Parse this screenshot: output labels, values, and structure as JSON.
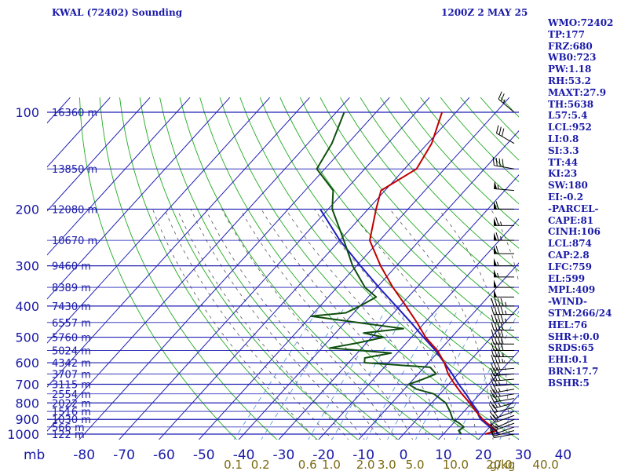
{
  "chart_data": {
    "type": "skew-t",
    "title": "KWAL (72402) Sounding",
    "valid": "1200Z  2 MAY 25",
    "pressure_unit_label": "mb",
    "pressure_levels": [
      1000,
      900,
      800,
      700,
      600,
      500,
      400,
      300,
      200,
      100
    ],
    "height_labels": [
      {
        "p": 1000,
        "label": "122 m"
      },
      {
        "p": 950,
        "label": "566 m"
      },
      {
        "p": 900,
        "label": "1030 m"
      },
      {
        "p": 850,
        "label": "1516 m"
      },
      {
        "p": 800,
        "label": "2022 m"
      },
      {
        "p": 750,
        "label": "2554 m"
      },
      {
        "p": 700,
        "label": "3115 m"
      },
      {
        "p": 650,
        "label": "3707 m"
      },
      {
        "p": 600,
        "label": "4342 m"
      },
      {
        "p": 550,
        "label": "5024 m"
      },
      {
        "p": 500,
        "label": "5760 m"
      },
      {
        "p": 450,
        "label": "6557 m"
      },
      {
        "p": 400,
        "label": "7430 m"
      },
      {
        "p": 350,
        "label": "8389 m"
      },
      {
        "p": 300,
        "label": "9460 m"
      },
      {
        "p": 250,
        "label": "10670 m"
      },
      {
        "p": 200,
        "label": "12080 m"
      },
      {
        "p": 150,
        "label": "13850 m"
      },
      {
        "p": 100,
        "label": "16360 m"
      }
    ],
    "temperature_ticks": [
      -80,
      -70,
      -60,
      -50,
      -40,
      -30,
      -20,
      -10,
      0,
      10,
      20,
      30,
      40
    ],
    "temperature_tick_labels": [
      "-80",
      "-70",
      "-60",
      "-50",
      "-40",
      "-30",
      "-20",
      "-10",
      "0",
      "10",
      "20",
      "30",
      "40"
    ],
    "mixing_ratio_labels": [
      "0.1",
      "0.2",
      "0.6",
      "1.0",
      "2.0",
      "3.0",
      "5.0",
      "10.0",
      "20.0",
      "40.0"
    ],
    "mixing_ratio_unit": "g/kg",
    "temperature_profile": [
      [
        1000,
        20.5
      ],
      [
        975,
        22.5
      ],
      [
        950,
        20.5
      ],
      [
        925,
        18.5
      ],
      [
        900,
        16.5
      ],
      [
        850,
        13.0
      ],
      [
        800,
        9.5
      ],
      [
        750,
        5.5
      ],
      [
        700,
        1.5
      ],
      [
        650,
        -2.5
      ],
      [
        600,
        -6.0
      ],
      [
        550,
        -10.5
      ],
      [
        500,
        -16.5
      ],
      [
        450,
        -22.0
      ],
      [
        400,
        -28.5
      ],
      [
        350,
        -36.0
      ],
      [
        300,
        -44.0
      ],
      [
        250,
        -52.5
      ],
      [
        200,
        -58.0
      ],
      [
        175,
        -61.0
      ],
      [
        150,
        -57.0
      ],
      [
        125,
        -59.0
      ],
      [
        100,
        -63.5
      ]
    ],
    "dewpoint_profile": [
      [
        1000,
        14.5
      ],
      [
        975,
        13.0
      ],
      [
        950,
        13.5
      ],
      [
        925,
        11.5
      ],
      [
        900,
        9.0
      ],
      [
        850,
        6.5
      ],
      [
        800,
        3.5
      ],
      [
        750,
        -1.5
      ],
      [
        725,
        -7.0
      ],
      [
        700,
        -10.0
      ],
      [
        680,
        -8.0
      ],
      [
        650,
        -5.5
      ],
      [
        620,
        -8.5
      ],
      [
        600,
        -26.0
      ],
      [
        580,
        -27.0
      ],
      [
        560,
        -21.5
      ],
      [
        540,
        -38.0
      ],
      [
        520,
        -32.0
      ],
      [
        500,
        -27.0
      ],
      [
        485,
        -33.0
      ],
      [
        470,
        -24.0
      ],
      [
        450,
        -37.0
      ],
      [
        430,
        -50.0
      ],
      [
        420,
        -42.0
      ],
      [
        400,
        -40.0
      ],
      [
        375,
        -38.0
      ],
      [
        350,
        -43.0
      ],
      [
        300,
        -51.0
      ],
      [
        250,
        -59.0
      ],
      [
        200,
        -69.0
      ],
      [
        175,
        -73.0
      ],
      [
        150,
        -82.0
      ],
      [
        125,
        -84.0
      ],
      [
        100,
        -88.0
      ]
    ],
    "parcel_path": [
      [
        1000,
        24.0
      ],
      [
        950,
        20.0
      ],
      [
        900,
        16.0
      ],
      [
        874,
        14.5
      ],
      [
        850,
        13.5
      ],
      [
        800,
        10.0
      ],
      [
        750,
        6.5
      ],
      [
        700,
        2.5
      ],
      [
        650,
        -1.5
      ],
      [
        600,
        -6.0
      ],
      [
        550,
        -11.0
      ],
      [
        500,
        -17.0
      ],
      [
        450,
        -23.5
      ],
      [
        400,
        -31.0
      ],
      [
        350,
        -39.5
      ],
      [
        300,
        -49.0
      ],
      [
        250,
        -60.0
      ],
      [
        200,
        -72.0
      ]
    ],
    "wind_barbs": [
      [
        1000,
        260,
        10
      ],
      [
        975,
        255,
        10
      ],
      [
        950,
        250,
        15
      ],
      [
        925,
        250,
        15
      ],
      [
        900,
        245,
        15
      ],
      [
        875,
        250,
        20
      ],
      [
        850,
        250,
        20
      ],
      [
        825,
        255,
        20
      ],
      [
        800,
        255,
        25
      ],
      [
        775,
        260,
        25
      ],
      [
        750,
        260,
        25
      ],
      [
        725,
        260,
        25
      ],
      [
        700,
        265,
        25
      ],
      [
        675,
        265,
        30
      ],
      [
        650,
        265,
        30
      ],
      [
        625,
        265,
        30
      ],
      [
        600,
        270,
        35
      ],
      [
        575,
        270,
        35
      ],
      [
        550,
        270,
        40
      ],
      [
        525,
        270,
        40
      ],
      [
        500,
        270,
        40
      ],
      [
        475,
        270,
        40
      ],
      [
        450,
        270,
        45
      ],
      [
        425,
        270,
        45
      ],
      [
        400,
        270,
        45
      ],
      [
        375,
        270,
        50
      ],
      [
        350,
        270,
        50
      ],
      [
        325,
        270,
        55
      ],
      [
        300,
        270,
        55
      ],
      [
        275,
        270,
        60
      ],
      [
        250,
        270,
        65
      ],
      [
        225,
        270,
        65
      ],
      [
        200,
        270,
        60
      ],
      [
        175,
        275,
        55
      ],
      [
        150,
        280,
        40
      ],
      [
        125,
        300,
        30
      ],
      [
        100,
        310,
        25
      ]
    ],
    "colors": {
      "isobar": "#1f1fb4",
      "isotherm": "#1f1fb4",
      "dry_adiabat": "#22aa22",
      "moist_adiabat": "#555555",
      "mixing_ratio": "#4a8fd8",
      "temperature": "#c00000",
      "dewpoint": "#0f4f0f",
      "parcel": "#1f1fbf",
      "labels": "#1a1aa8",
      "mixing_labels": "#7a6a10",
      "barbs": "#000000"
    }
  },
  "indices": [
    "WMO:72402",
    "TP:177",
    "FRZ:680",
    "WB0:723",
    "PW:1.18",
    "RH:53.2",
    "MAXT:27.9",
    "TH:5638",
    "L57:5.4",
    "LCL:952",
    "LI:0.8",
    "SI:3.3",
    "TT:44",
    "KI:23",
    "SW:180",
    "EI:-0.2",
    "-PARCEL-",
    "CAPE:81",
    "CINH:106",
    "LCL:874",
    "CAP:2.8",
    "LFC:759",
    "EL:599",
    "MPL:409",
    "-WIND-",
    "STM:266/24",
    "HEL:76",
    "SHR+:0.0",
    "SRDS:65",
    "EHI:0.1",
    "BRN:17.7",
    "BSHR:5"
  ]
}
